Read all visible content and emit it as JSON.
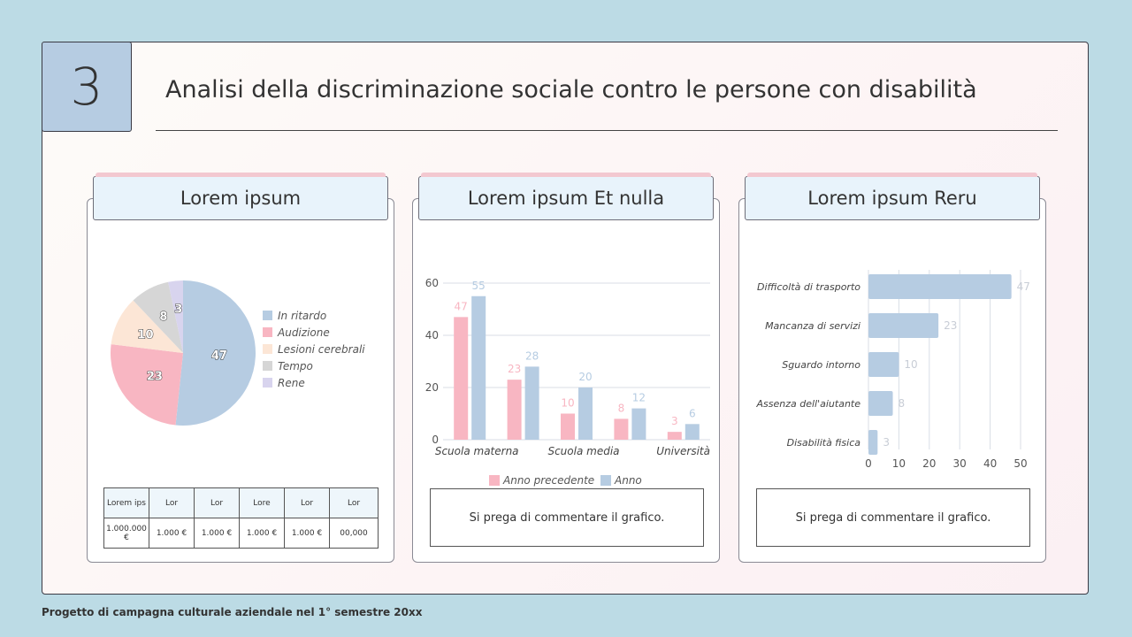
{
  "slide": {
    "number": "3",
    "title": "Analisi della discriminazione sociale contro le persone con disabilità",
    "footer": "Progetto di campagna culturale aziendale nel 1° semestre 20xx"
  },
  "cards": [
    {
      "title": "Lorem ipsum"
    },
    {
      "title": "Lorem ipsum Et nulla",
      "comment": "Si prega di commentare il grafico."
    },
    {
      "title": "Lorem ipsum Reru",
      "comment": "Si prega di commentare il grafico."
    }
  ],
  "table": {
    "header": [
      "Lorem ips",
      "Lor",
      "Lor",
      "Lore",
      "Lor",
      "Lor"
    ],
    "row": [
      "1.000.000 €",
      "1.000 €",
      "1.000 €",
      "1.000 €",
      "1.000 €",
      "00,000"
    ]
  },
  "colors": {
    "blue": "#b6cce2",
    "pink": "#f8b6c2",
    "peach": "#fce6d6",
    "gray": "#d6d6d6",
    "lavender": "#d8d4ee"
  },
  "chart_data": [
    {
      "type": "pie",
      "labels": [
        "In ritardo",
        "Audizione",
        "Lesioni cerebrali",
        "Tempo",
        "Rene"
      ],
      "values": [
        47,
        23,
        10,
        8,
        3
      ],
      "colors": [
        "#b6cce2",
        "#f8b6c2",
        "#fce6d6",
        "#d6d6d6",
        "#d8d4ee"
      ],
      "legend": "right"
    },
    {
      "type": "bar",
      "categories": [
        "Scuola materna",
        "",
        "Scuola media",
        "",
        "Università"
      ],
      "series": [
        {
          "name": "Anno precedente",
          "values": [
            47,
            23,
            10,
            8,
            3
          ],
          "color": "#f8b6c2"
        },
        {
          "name": "Anno",
          "values": [
            55,
            28,
            20,
            12,
            6
          ],
          "color": "#b6cce2"
        }
      ],
      "ylim": [
        0,
        60
      ],
      "yticks": [
        "0",
        "20",
        "40",
        "60"
      ],
      "data_labels": [
        [
          "47",
          "23",
          "10",
          "8",
          "3"
        ],
        [
          "55",
          "28",
          "20",
          "12",
          "6"
        ]
      ],
      "grid": true,
      "legend": "bottom"
    },
    {
      "type": "bar",
      "orientation": "horizontal",
      "categories": [
        "Difficoltà di trasporto",
        "Mancanza di servizi",
        "Sguardo intorno",
        "Assenza dell'aiutante",
        "Disabilità fisica"
      ],
      "values": [
        47,
        23,
        10,
        8,
        3
      ],
      "xlim": [
        0,
        50
      ],
      "xticks": [
        "0",
        "10",
        "20",
        "30",
        "40",
        "50"
      ],
      "color": "#b6cce2",
      "grid": true
    }
  ]
}
